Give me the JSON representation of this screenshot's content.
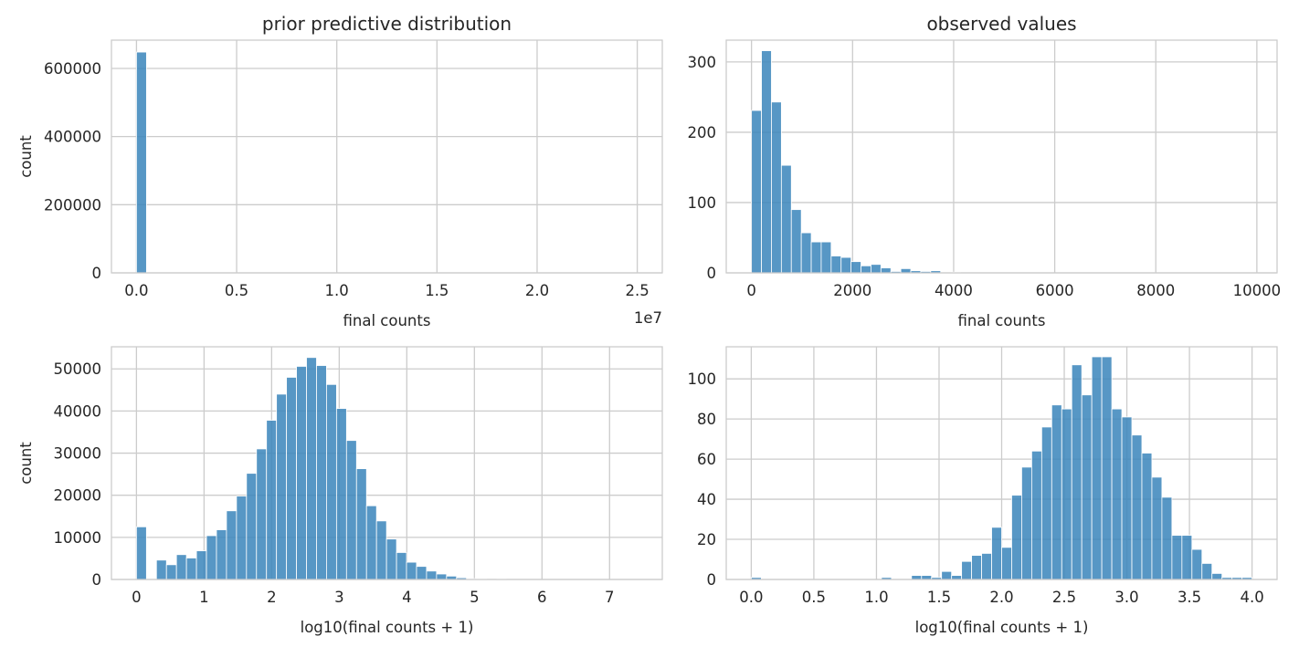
{
  "colors": {
    "bar": "#3a85bb",
    "grid": "#cccccc",
    "text": "#262626"
  },
  "chart_data": [
    {
      "type": "bar",
      "title": "prior predictive distribution",
      "xlabel": "final counts",
      "ylabel": "count",
      "xlim": [
        -1250000,
        26250000
      ],
      "ylim": [
        0,
        683000
      ],
      "xticks": [
        0,
        5000000,
        10000000,
        15000000,
        20000000,
        25000000
      ],
      "xtick_labels": [
        "0.0",
        "0.5",
        "1.0",
        "1.5",
        "2.0",
        "2.5"
      ],
      "yticks": [
        0,
        200000,
        400000,
        600000
      ],
      "ytick_labels": [
        "0",
        "200000",
        "400000",
        "600000"
      ],
      "offset_text": "1e7",
      "grid": true,
      "bin_start": 0,
      "bin_width": 500000,
      "values": [
        648000,
        0,
        0,
        0,
        0,
        0,
        0,
        0,
        0,
        0,
        0,
        0,
        0,
        0,
        0,
        0,
        0,
        0,
        0,
        0,
        0,
        0,
        0,
        0,
        0,
        0,
        0,
        0,
        0,
        0,
        0,
        0,
        0,
        0,
        0,
        0,
        0,
        0,
        0,
        0,
        0,
        0,
        0,
        0,
        0,
        0,
        0,
        0,
        0,
        0
      ]
    },
    {
      "type": "bar",
      "title": "observed values",
      "xlabel": "final counts",
      "ylabel": "",
      "xlim": [
        -500,
        10400
      ],
      "ylim": [
        0,
        331
      ],
      "xticks": [
        0,
        2000,
        4000,
        6000,
        8000,
        10000
      ],
      "xtick_labels": [
        "0",
        "2000",
        "4000",
        "6000",
        "8000",
        "10000"
      ],
      "yticks": [
        0,
        100,
        200,
        300
      ],
      "ytick_labels": [
        "0",
        "100",
        "200",
        "300"
      ],
      "grid": true,
      "bin_start": 0,
      "bin_width": 197,
      "values": [
        231,
        316,
        243,
        153,
        90,
        57,
        44,
        44,
        24,
        22,
        16,
        10,
        12,
        7,
        2,
        6,
        3,
        2,
        3,
        0,
        1,
        0,
        0,
        0,
        0,
        0,
        0,
        0,
        0,
        0,
        0,
        0,
        0,
        0,
        0,
        0,
        0,
        0,
        0,
        0,
        0,
        0,
        0,
        0,
        0,
        0,
        0,
        0,
        0,
        0
      ]
    },
    {
      "type": "bar",
      "title": "",
      "xlabel": "log10(final counts + 1)",
      "ylabel": "count",
      "xlim": [
        -0.37,
        7.78
      ],
      "ylim": [
        0,
        55250
      ],
      "xticks": [
        0,
        1,
        2,
        3,
        4,
        5,
        6,
        7
      ],
      "xtick_labels": [
        "0",
        "1",
        "2",
        "3",
        "4",
        "5",
        "6",
        "7"
      ],
      "yticks": [
        0,
        10000,
        20000,
        30000,
        40000,
        50000
      ],
      "ytick_labels": [
        "0",
        "10000",
        "20000",
        "30000",
        "40000",
        "50000"
      ],
      "grid": true,
      "bin_start": 0,
      "bin_width": 0.148,
      "values": [
        12500,
        0,
        4600,
        3500,
        5900,
        5100,
        6800,
        10400,
        11800,
        16300,
        19800,
        25200,
        31000,
        37800,
        44000,
        48000,
        50600,
        52700,
        50800,
        46300,
        40600,
        33000,
        26300,
        17500,
        13900,
        9600,
        6400,
        4100,
        3100,
        2000,
        1300,
        800,
        400,
        200,
        100,
        0,
        100,
        0,
        0,
        0,
        0,
        0,
        0,
        0,
        0,
        0,
        0,
        0,
        0,
        0
      ]
    },
    {
      "type": "bar",
      "title": "",
      "xlabel": "log10(final counts + 1)",
      "ylabel": "",
      "xlim": [
        -0.2,
        4.2
      ],
      "ylim": [
        0,
        116
      ],
      "xticks": [
        0,
        0.5,
        1,
        1.5,
        2,
        2.5,
        3,
        3.5,
        4
      ],
      "xtick_labels": [
        "0.0",
        "0.5",
        "1.0",
        "1.5",
        "2.0",
        "2.5",
        "3.0",
        "3.5",
        "4.0"
      ],
      "yticks": [
        0,
        20,
        40,
        60,
        80,
        100
      ],
      "ytick_labels": [
        "0",
        "20",
        "40",
        "60",
        "80",
        "100"
      ],
      "grid": true,
      "bin_start": 0,
      "bin_width": 0.08,
      "values": [
        1,
        0,
        0,
        0,
        0,
        0,
        0,
        0,
        0,
        0,
        0,
        0,
        0,
        1,
        0,
        0,
        2,
        2,
        1,
        4,
        2,
        9,
        12,
        13,
        26,
        16,
        42,
        56,
        64,
        76,
        87,
        85,
        107,
        92,
        111,
        111,
        85,
        81,
        72,
        63,
        51,
        41,
        22,
        22,
        15,
        8,
        3,
        1,
        1,
        1
      ]
    }
  ]
}
